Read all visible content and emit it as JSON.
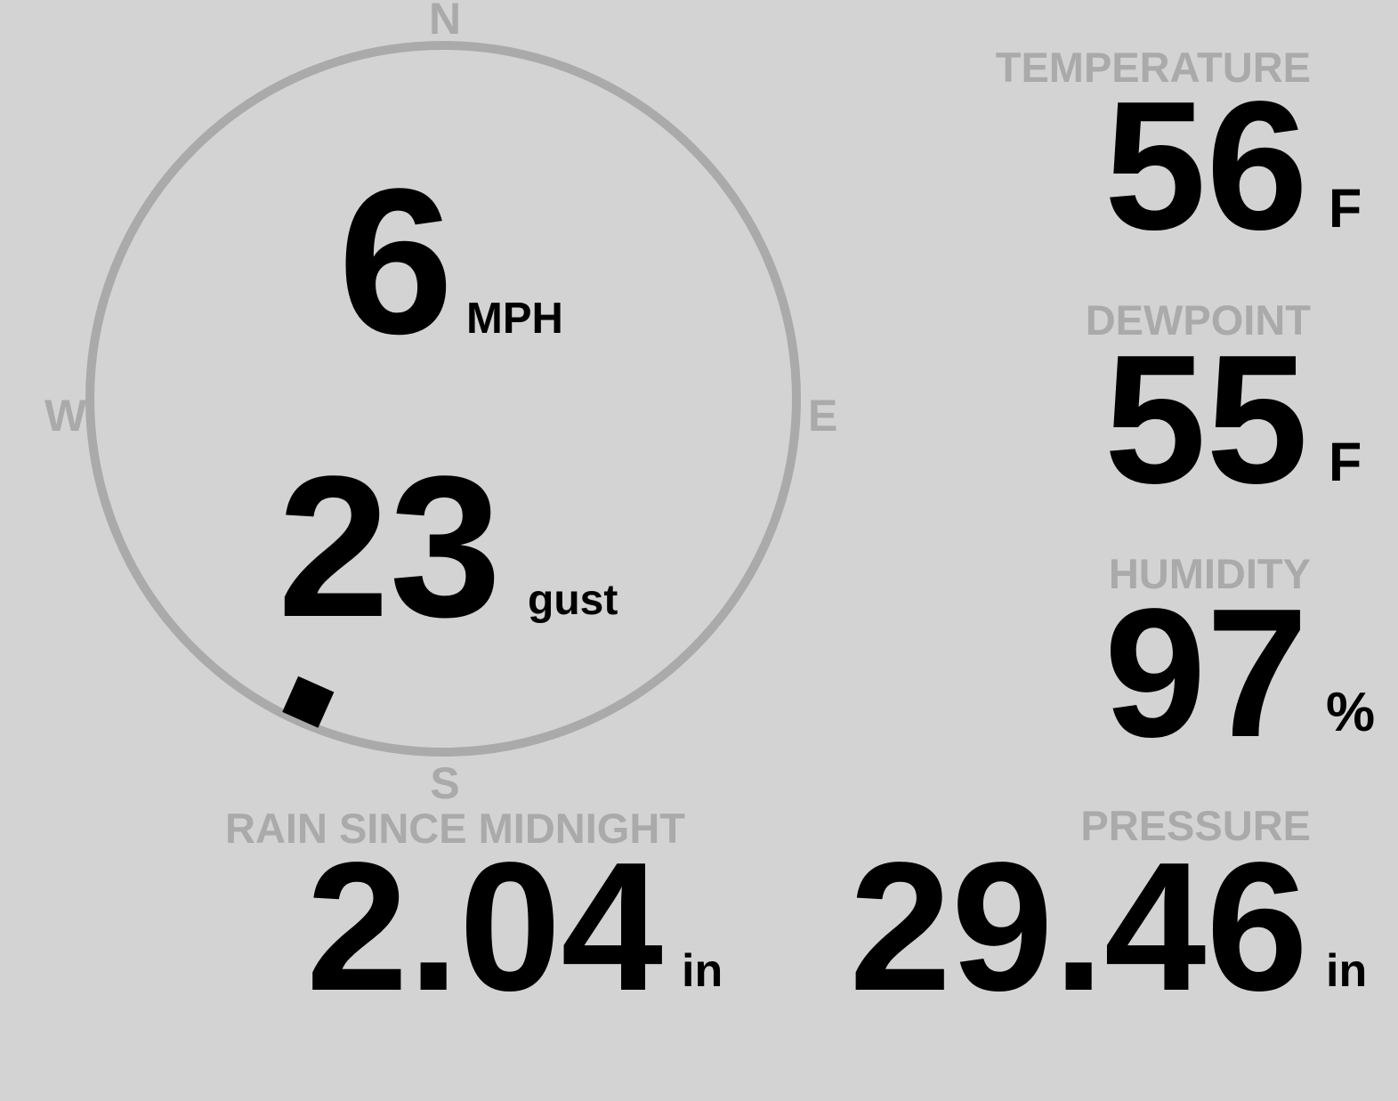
{
  "colors": {
    "background": "#d3d3d3",
    "label": "#aaaaaa",
    "value": "#000000",
    "dial": "#aaaaaa"
  },
  "wind": {
    "speed": "6",
    "speed_unit": "MPH",
    "gust": "23",
    "gust_label": "gust",
    "direction_deg": 204,
    "compass": {
      "n": "N",
      "e": "E",
      "s": "S",
      "w": "W"
    }
  },
  "temperature": {
    "label": "TEMPERATURE",
    "value": "56",
    "unit": "F"
  },
  "dewpoint": {
    "label": "DEWPOINT",
    "value": "55",
    "unit": "F"
  },
  "humidity": {
    "label": "HUMIDITY",
    "value": "97",
    "unit": "%"
  },
  "rain": {
    "label": "RAIN SINCE MIDNIGHT",
    "value": "2.04",
    "unit": "in"
  },
  "pressure": {
    "label": "PRESSURE",
    "value": "29.46",
    "unit": "in"
  }
}
